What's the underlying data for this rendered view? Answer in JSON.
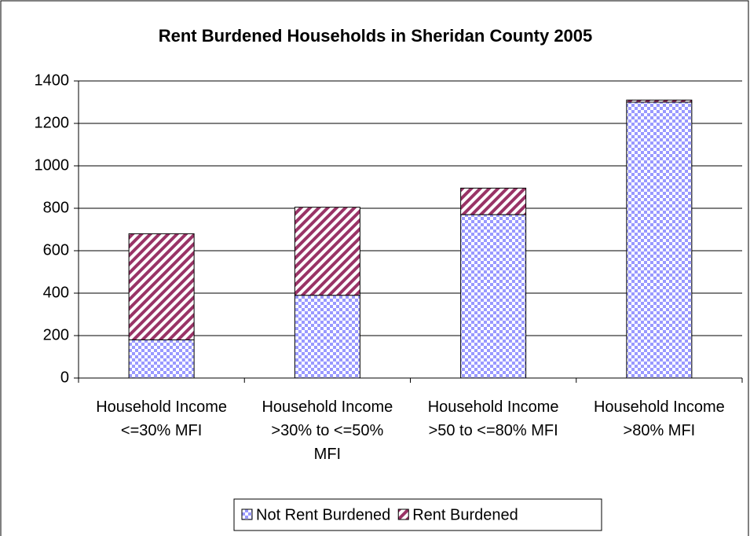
{
  "chart_data": {
    "type": "stacked_bar",
    "title": "Rent Burdened Households in Sheridan County 2005",
    "categories": [
      "Household Income <=30% MFI",
      "Household Income >30% to <=50% MFI",
      "Household Income >50 to <=80% MFI",
      "Household Income >80% MFI"
    ],
    "series": [
      {
        "name": "Not Rent Burdened",
        "color": "#9999ff",
        "values": [
          180,
          390,
          770,
          1300
        ]
      },
      {
        "name": "Rent Burdened",
        "color": "#993366",
        "values": [
          500,
          415,
          125,
          10
        ]
      }
    ],
    "ylim": [
      0,
      1400
    ],
    "yticks": [
      0,
      200,
      400,
      600,
      800,
      1000,
      1200,
      1400
    ],
    "grid": true,
    "legend": "bottom"
  }
}
